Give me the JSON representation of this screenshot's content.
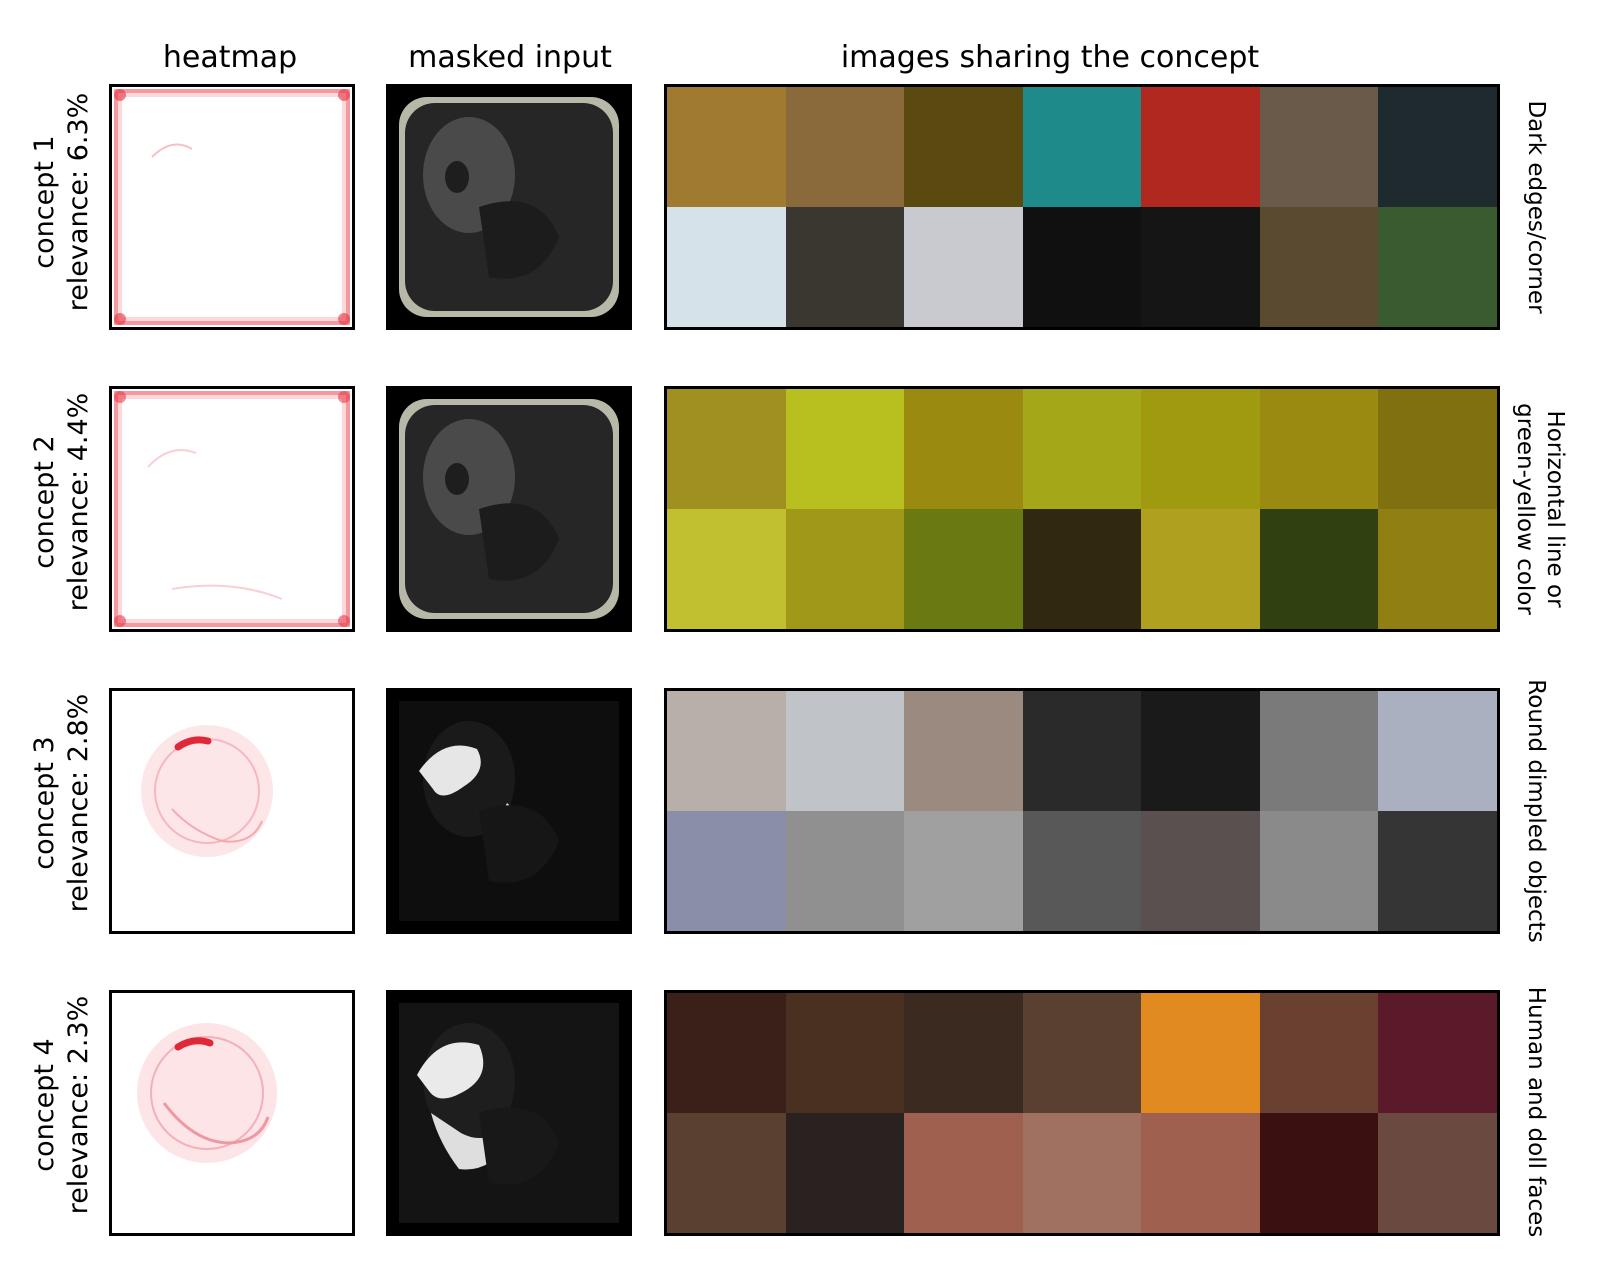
{
  "headers": {
    "heatmap": "heatmap",
    "masked": "masked input",
    "images": "images sharing the concept"
  },
  "rows": [
    {
      "concept": "concept 1",
      "relevance": "relevance: 6.3%",
      "name_lines": [
        "Dark edges/corner"
      ],
      "tiles": [
        "#a07a30",
        "#8a6a3a",
        "#5a4a10",
        "#1f8a8a",
        "#b02820",
        "#6a5a4a",
        "#1e2a2e",
        "#d6e2ea",
        "#3a3630",
        "#c8cad0",
        "#101010",
        "#151515",
        "#5a4a30",
        "#3a5a30"
      ]
    },
    {
      "concept": "concept 2",
      "relevance": "relevance: 4.4%",
      "name_lines": [
        "Horizontal line or",
        "green-yellow color"
      ],
      "tiles": [
        "#a09020",
        "#b8c020",
        "#9a8a10",
        "#a4a818",
        "#a09a10",
        "#9a8a12",
        "#807010",
        "#c0c030",
        "#a09818",
        "#6a7a10",
        "#302810",
        "#b0a020",
        "#304010",
        "#908014"
      ]
    },
    {
      "concept": "concept 3",
      "relevance": "relevance: 2.8%",
      "name_lines": [
        "Round dimpled objects"
      ],
      "tiles": [
        "#b8b0a8",
        "#c0c4c8",
        "#9a8a80",
        "#2a2a2a",
        "#1a1a1a",
        "#7a7a7a",
        "#aab0c0",
        "#8a8ea8",
        "#909090",
        "#a0a0a0",
        "#585858",
        "#5a5050",
        "#8a8a8a",
        "#353535"
      ]
    },
    {
      "concept": "concept 4",
      "relevance": "relevance: 2.3%",
      "name_lines": [
        "Human and doll faces"
      ],
      "tiles": [
        "#3a2018",
        "#4a3020",
        "#3a2a20",
        "#5a4030",
        "#e08a20",
        "#6a4030",
        "#5a1a2a",
        "#5a4030",
        "#2a2220",
        "#a06050",
        "#a07060",
        "#a06050",
        "#3a1010",
        "#6a4a40"
      ]
    }
  ]
}
